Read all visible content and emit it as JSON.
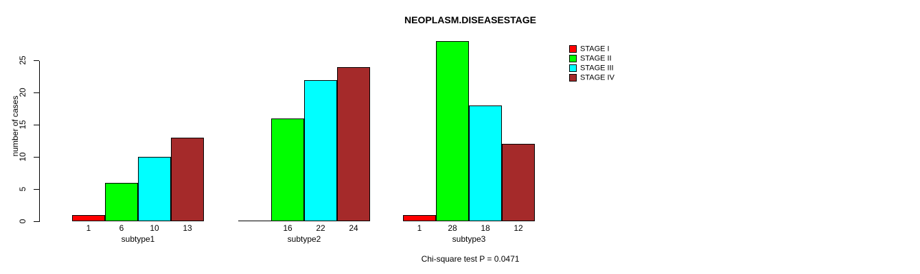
{
  "title": "NEOPLASM.DISEASESTAGE",
  "y_axis_title": "number of cases",
  "footer": "Chi-square test P = 0.0471",
  "legend": {
    "items": [
      {
        "label": "STAGE I",
        "color": "#FF0000"
      },
      {
        "label": "STAGE II",
        "color": "#00FF00"
      },
      {
        "label": "STAGE III",
        "color": "#00FFFF"
      },
      {
        "label": "STAGE IV",
        "color": "#A52A2A"
      }
    ]
  },
  "chart_data": {
    "type": "bar",
    "title": "NEOPLASM.DISEASESTAGE",
    "xlabel": "",
    "ylabel": "number of cases",
    "categories": [
      "subtype1",
      "subtype2",
      "subtype3"
    ],
    "series": [
      {
        "name": "STAGE I",
        "color": "#FF0000",
        "values": [
          1,
          0,
          1
        ]
      },
      {
        "name": "STAGE II",
        "color": "#00FF00",
        "values": [
          6,
          16,
          28
        ]
      },
      {
        "name": "STAGE III",
        "color": "#00FFFF",
        "values": [
          10,
          22,
          18
        ]
      },
      {
        "name": "STAGE IV",
        "color": "#A52A2A",
        "values": [
          13,
          24,
          12
        ]
      }
    ],
    "bar_labels": [
      [
        "1",
        "6",
        "10",
        "13"
      ],
      [
        "",
        "16",
        "22",
        "24"
      ],
      [
        "1",
        "28",
        "18",
        "12"
      ]
    ],
    "yticks": [
      0,
      5,
      10,
      15,
      20,
      25
    ],
    "ylim": [
      0,
      25
    ],
    "grid": false,
    "legend_position": "right",
    "annotation": "Chi-square test P = 0.0471"
  }
}
